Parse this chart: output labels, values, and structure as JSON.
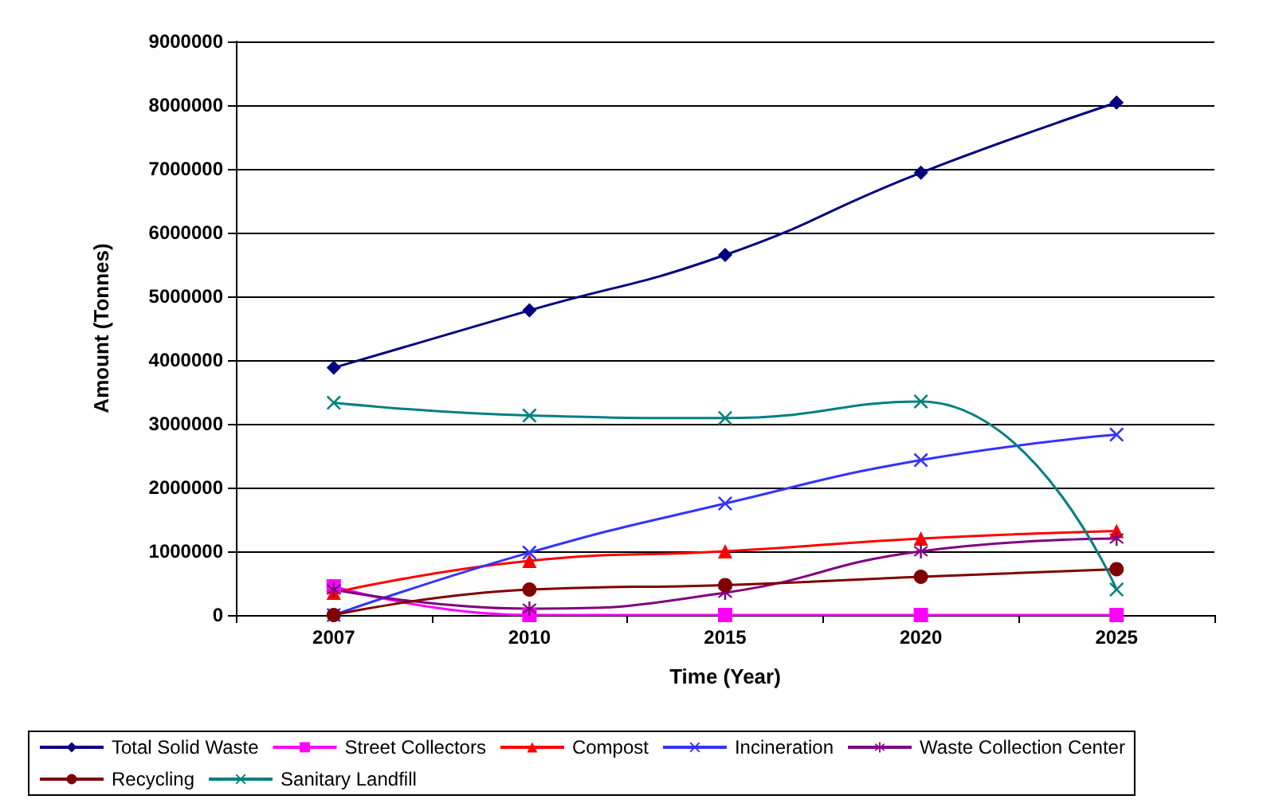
{
  "chart_data": {
    "type": "line",
    "xlabel": "Time (Year)",
    "ylabel": "Amount (Tonnes)",
    "categories": [
      "2007",
      "2010",
      "2015",
      "2020",
      "2025"
    ],
    "series": [
      {
        "name": "Total Solid Waste",
        "color": "#000080",
        "marker": "diamond",
        "values": [
          3880000,
          4780000,
          5650000,
          6940000,
          8040000
        ]
      },
      {
        "name": "Street Collectors",
        "color": "#ff00ff",
        "marker": "square",
        "values": [
          450000,
          0,
          0,
          0,
          0
        ]
      },
      {
        "name": "Compost",
        "color": "#ff0000",
        "marker": "triangle",
        "values": [
          350000,
          850000,
          1000000,
          1200000,
          1320000
        ]
      },
      {
        "name": "Incineration",
        "color": "#3333ff",
        "marker": "cross",
        "values": [
          0,
          980000,
          1750000,
          2430000,
          2830000
        ]
      },
      {
        "name": "Waste Collection Center",
        "color": "#800080",
        "marker": "star",
        "values": [
          400000,
          100000,
          350000,
          1000000,
          1200000
        ]
      },
      {
        "name": "Recycling",
        "color": "#800000",
        "marker": "circle",
        "values": [
          0,
          400000,
          470000,
          600000,
          720000
        ]
      },
      {
        "name": "Sanitary Landfill",
        "color": "#008080",
        "marker": "cross",
        "values": [
          3330000,
          3130000,
          3090000,
          3350000,
          400000
        ]
      }
    ],
    "ylim": [
      0,
      9000000
    ],
    "yticks": [
      0,
      1000000,
      2000000,
      3000000,
      4000000,
      5000000,
      6000000,
      7000000,
      8000000,
      9000000
    ],
    "grid": "y",
    "legend": "bottom"
  }
}
